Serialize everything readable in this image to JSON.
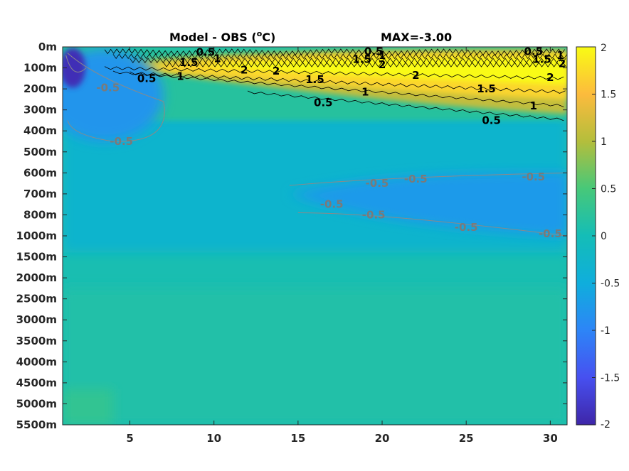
{
  "chart_data": {
    "type": "heatmap",
    "title_left": "Model - OBS (",
    "title_unit_sup": "o",
    "title_unit": "C)",
    "title_right": "MAX=-3.00",
    "x_ticks": [
      "5",
      "10",
      "15",
      "20",
      "25",
      "30"
    ],
    "x_tick_values": [
      5,
      10,
      15,
      20,
      25,
      30
    ],
    "xlim": [
      1,
      31
    ],
    "y_ticks": [
      "0m",
      "100m",
      "200m",
      "300m",
      "400m",
      "500m",
      "600m",
      "700m",
      "800m",
      "1000m",
      "1500m",
      "2000m",
      "2500m",
      "3000m",
      "3500m",
      "4000m",
      "4500m",
      "5000m",
      "5500m"
    ],
    "colorbar": {
      "min": -2,
      "max": 2,
      "ticks": [
        "2",
        "1.5",
        "1",
        "0.5",
        "0",
        "-0.5",
        "-1",
        "-1.5",
        "-2"
      ],
      "tick_values": [
        2,
        1.5,
        1,
        0.5,
        0,
        -0.5,
        -1,
        -1.5,
        -2
      ],
      "colormap": "parula"
    },
    "regions": [
      {
        "name": "cold-core-top-left",
        "depth_index_range": [
          0,
          1.6
        ],
        "x_range": [
          1,
          3
        ],
        "value": -1.9
      },
      {
        "name": "cold-upper-left",
        "depth_index_range": [
          0.5,
          4.5
        ],
        "x_range": [
          1,
          7
        ],
        "value": -0.7
      },
      {
        "name": "warm-thermocline",
        "depth_index_range": [
          0.5,
          3.5
        ],
        "x_range": [
          3,
          31
        ],
        "value": 1.8
      },
      {
        "name": "cold-intermediate-right",
        "depth_index_range": [
          6.5,
          9.2
        ],
        "x_range": [
          14,
          31
        ],
        "value": -0.7
      },
      {
        "name": "deep-ocean",
        "depth_index_range": [
          10,
          18
        ],
        "x_range": [
          1,
          31
        ],
        "value": 0.1
      }
    ],
    "contour_labels": [
      {
        "text": "0.5",
        "x": 9.5,
        "depth_index": 0.25,
        "color": "black"
      },
      {
        "text": "0.5",
        "x": 19.5,
        "depth_index": 0.22,
        "color": "black"
      },
      {
        "text": "0.5",
        "x": 29,
        "depth_index": 0.22,
        "color": "black"
      },
      {
        "text": "1",
        "x": 10.2,
        "depth_index": 0.55,
        "color": "black"
      },
      {
        "text": "1",
        "x": 20,
        "depth_index": 0.4,
        "color": "black"
      },
      {
        "text": "1",
        "x": 30.6,
        "depth_index": 0.4,
        "color": "black"
      },
      {
        "text": "1.5",
        "x": 8.5,
        "depth_index": 0.75,
        "color": "black"
      },
      {
        "text": "1.5",
        "x": 18.8,
        "depth_index": 0.6,
        "color": "black"
      },
      {
        "text": "1.5",
        "x": 29.5,
        "depth_index": 0.6,
        "color": "black"
      },
      {
        "text": "2",
        "x": 20,
        "depth_index": 0.85,
        "color": "black"
      },
      {
        "text": "2",
        "x": 30.7,
        "depth_index": 0.8,
        "color": "black"
      },
      {
        "text": "0.5",
        "x": 6,
        "depth_index": 1.5,
        "color": "black"
      },
      {
        "text": "1",
        "x": 8,
        "depth_index": 1.4,
        "color": "black"
      },
      {
        "text": "2",
        "x": 11.8,
        "depth_index": 1.1,
        "color": "black"
      },
      {
        "text": "2",
        "x": 13.7,
        "depth_index": 1.15,
        "color": "black"
      },
      {
        "text": "1.5",
        "x": 16,
        "depth_index": 1.55,
        "color": "black"
      },
      {
        "text": "2",
        "x": 22,
        "depth_index": 1.35,
        "color": "black"
      },
      {
        "text": "2",
        "x": 30,
        "depth_index": 1.45,
        "color": "black"
      },
      {
        "text": "1",
        "x": 19,
        "depth_index": 2.15,
        "color": "black"
      },
      {
        "text": "1.5",
        "x": 26.2,
        "depth_index": 2.0,
        "color": "black"
      },
      {
        "text": "1",
        "x": 29,
        "depth_index": 2.8,
        "color": "black"
      },
      {
        "text": "0.5",
        "x": 16.5,
        "depth_index": 2.65,
        "color": "black"
      },
      {
        "text": "0.5",
        "x": 26.5,
        "depth_index": 3.5,
        "color": "black"
      },
      {
        "text": "-0.5",
        "x": 3.7,
        "depth_index": 1.95,
        "color": "gray"
      },
      {
        "text": "-0.5",
        "x": 4.5,
        "depth_index": 4.5,
        "color": "gray"
      },
      {
        "text": "-0.5",
        "x": 22,
        "depth_index": 6.3,
        "color": "gray"
      },
      {
        "text": "-0.5",
        "x": 29,
        "depth_index": 6.2,
        "color": "gray"
      },
      {
        "text": "-0.5",
        "x": 19.7,
        "depth_index": 6.5,
        "color": "gray"
      },
      {
        "text": "-0.5",
        "x": 17,
        "depth_index": 7.5,
        "color": "gray"
      },
      {
        "text": "-0.5",
        "x": 19.5,
        "depth_index": 8.0,
        "color": "gray"
      },
      {
        "text": "-0.5",
        "x": 25,
        "depth_index": 8.6,
        "color": "gray"
      },
      {
        "text": "-0.5",
        "x": 30,
        "depth_index": 8.9,
        "color": "gray"
      }
    ]
  }
}
